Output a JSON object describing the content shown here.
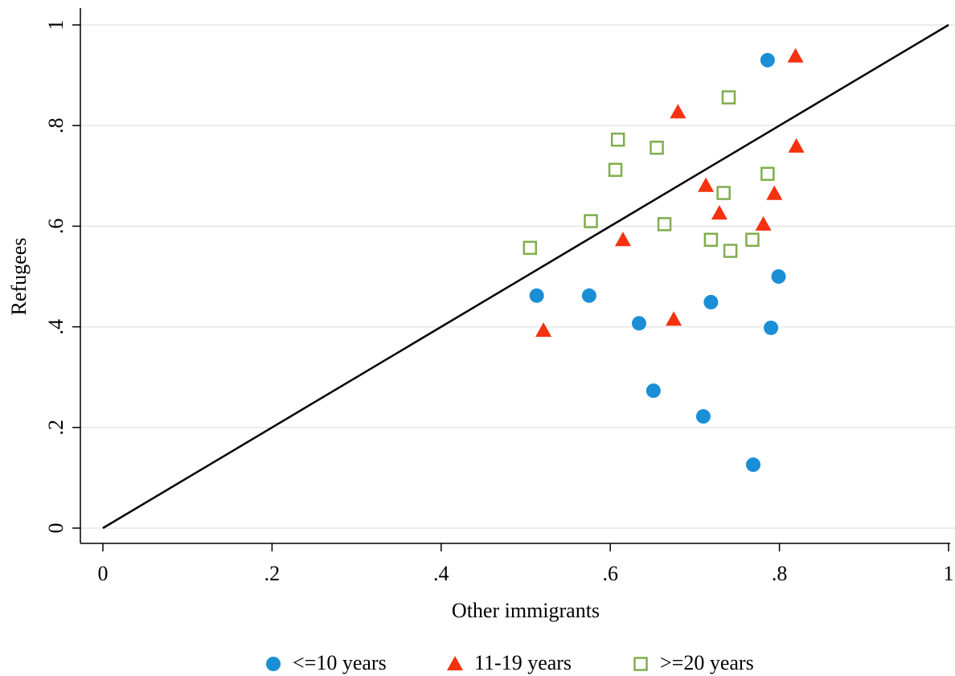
{
  "chart_data": {
    "type": "scatter",
    "x_label": "Other immigrants",
    "y_label": "Refugees",
    "xlim": [
      0,
      1
    ],
    "ylim": [
      0,
      1
    ],
    "xticks": [
      0,
      {
        "value": 0.2,
        "label": ".2"
      },
      {
        "value": 0.4,
        "label": ".4"
      },
      {
        "value": 0.6,
        "label": ".6"
      },
      {
        "value": 0.8,
        "label": ".8"
      },
      1
    ],
    "yticks": [
      0,
      {
        "value": 0.2,
        "label": ".2"
      },
      {
        "value": 0.4,
        "label": ".4"
      },
      {
        "value": 0.6,
        "label": ".6"
      },
      {
        "value": 0.8,
        "label": ".8"
      },
      1
    ],
    "grid": true,
    "legend": "bottom",
    "series": [
      {
        "name": "<=10 years",
        "color": "#1a8fd6",
        "marker": "circle",
        "x": [
          0.786,
          0.513,
          0.575,
          0.634,
          0.719,
          0.799,
          0.79,
          0.651,
          0.71,
          0.769
        ],
        "y": [
          0.93,
          0.462,
          0.462,
          0.407,
          0.449,
          0.5,
          0.398,
          0.273,
          0.222,
          0.126
        ]
      },
      {
        "name": "11-19 years",
        "color": "#f5310f",
        "marker": "triangle",
        "x": [
          0.819,
          0.68,
          0.82,
          0.713,
          0.794,
          0.729,
          0.781,
          0.615,
          0.521,
          0.675
        ],
        "y": [
          0.938,
          0.827,
          0.759,
          0.681,
          0.665,
          0.626,
          0.604,
          0.573,
          0.393,
          0.415
        ]
      },
      {
        "name": ">=20 years",
        "color": "#7fae4e",
        "marker": "square",
        "x": [
          0.74,
          0.609,
          0.655,
          0.606,
          0.786,
          0.734,
          0.577,
          0.664,
          0.719,
          0.768,
          0.742,
          0.505
        ],
        "y": [
          0.856,
          0.772,
          0.756,
          0.712,
          0.704,
          0.666,
          0.61,
          0.604,
          0.573,
          0.573,
          0.551,
          0.557
        ]
      }
    ]
  }
}
